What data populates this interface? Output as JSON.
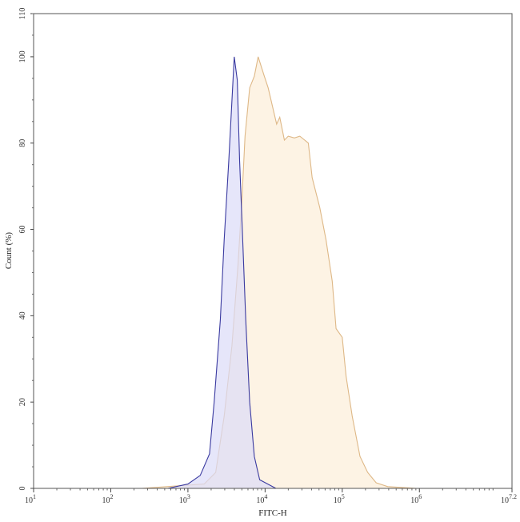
{
  "chart_data": {
    "type": "area",
    "xlabel": "FITC-H",
    "ylabel": "Count (%)",
    "x_scale": "log",
    "xlim_log10": [
      1,
      7.2
    ],
    "ylim": [
      0,
      110
    ],
    "x_tick_labels": [
      {
        "base": "10",
        "exp": "1"
      },
      {
        "base": "10",
        "exp": "2"
      },
      {
        "base": "10",
        "exp": "3"
      },
      {
        "base": "10",
        "exp": "4"
      },
      {
        "base": "10",
        "exp": "5"
      },
      {
        "base": "10",
        "exp": "6"
      },
      {
        "base": "10",
        "exp": "7.2"
      }
    ],
    "y_tick_labels": [
      "0",
      "20",
      "40",
      "60",
      "80",
      "100",
      "110"
    ],
    "grid": false,
    "series": [
      {
        "color": "#deb887",
        "fill": "#fdf3e4",
        "log10_x": [
          2.4,
          3.21,
          3.36,
          3.47,
          3.57,
          3.65,
          3.7,
          3.74,
          3.8,
          3.86,
          3.91,
          3.99,
          4.04,
          4.09,
          4.15,
          4.19,
          4.25,
          4.3,
          4.38,
          4.45,
          4.56,
          4.61,
          4.71,
          4.79,
          4.87,
          4.92,
          5.0,
          5.05,
          5.13,
          5.23,
          5.33,
          5.44,
          5.59,
          5.96
        ],
        "y": [
          0,
          1,
          3.7,
          16.7,
          33,
          52,
          67,
          81.6,
          92.8,
          95.5,
          100,
          95.5,
          92.8,
          89,
          84.4,
          86,
          80.7,
          81.6,
          81.2,
          81.6,
          80,
          72,
          65,
          57.5,
          48,
          37,
          35,
          26,
          16.7,
          7.4,
          3.7,
          1.3,
          0.4,
          0
        ]
      },
      {
        "color": "#3a3aa0",
        "fill": "#dcdcf8",
        "log10_x": [
          2.74,
          3.0,
          3.16,
          3.28,
          3.34,
          3.42,
          3.47,
          3.53,
          3.6,
          3.64,
          3.67,
          3.71,
          3.75,
          3.8,
          3.86,
          3.93,
          4.14
        ],
        "y": [
          0,
          1,
          3,
          8,
          20,
          39,
          57.5,
          76,
          100,
          94.6,
          76,
          57.5,
          39,
          20,
          7.4,
          2,
          0
        ]
      }
    ]
  }
}
